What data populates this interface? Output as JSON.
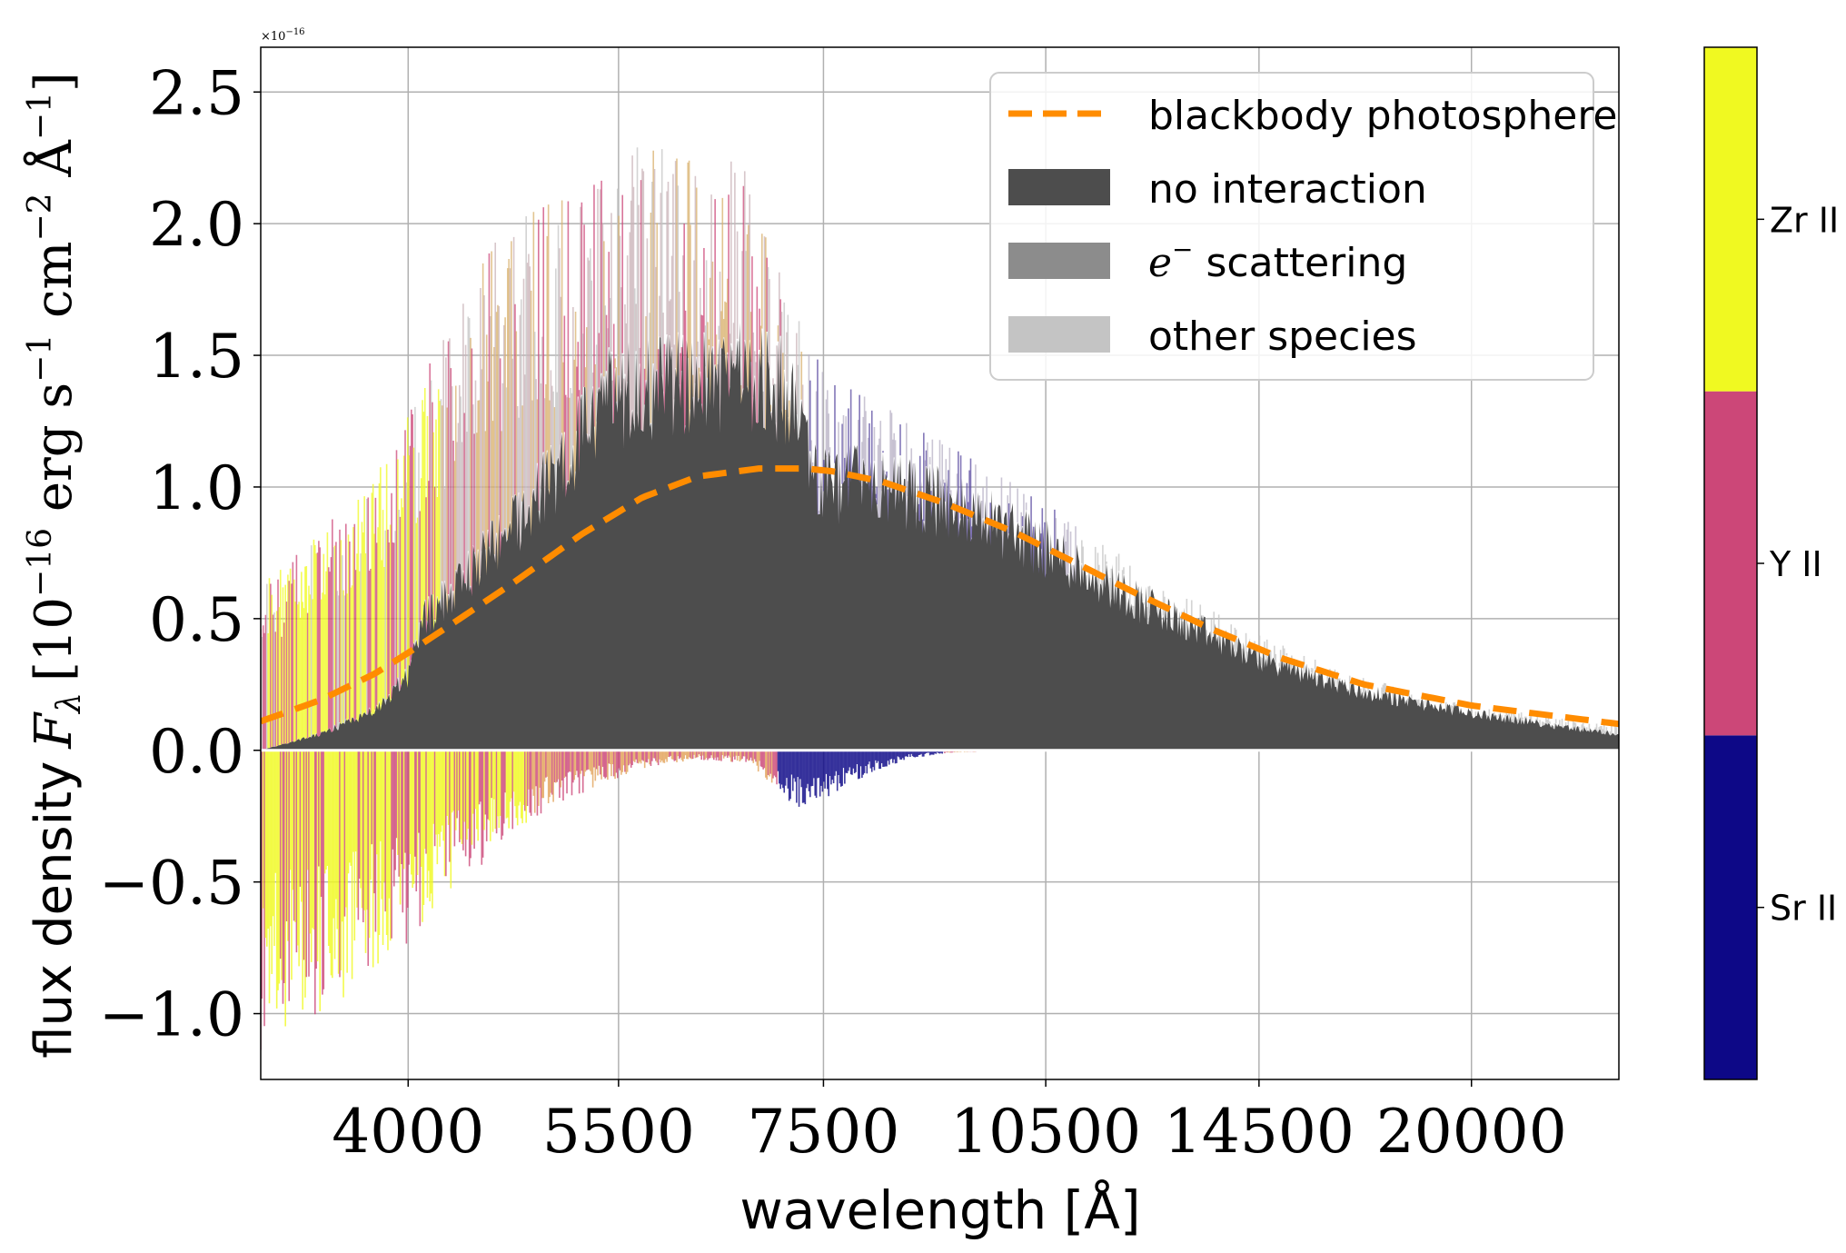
{
  "chart_data": {
    "type": "area",
    "xlabel": "wavelength [Å]",
    "ylabel_prefix": "flux density",
    "ylabel_math": "F",
    "ylabel_sub": "λ",
    "ylabel_units": "[10",
    "ylabel_exp1": "−16",
    "ylabel_unit2": " erg s",
    "ylabel_exp2": "−1",
    "ylabel_unit3": " cm",
    "ylabel_exp3": "−2",
    "ylabel_unit4": " Å",
    "ylabel_exp4": "−1",
    "ylabel_close": "]",
    "offset_text": "×10",
    "offset_exp": "−16",
    "x_scale": "log",
    "xlim": [
      3200,
      25000
    ],
    "ylim": [
      -1.25,
      2.67
    ],
    "xticks": [
      4000,
      5500,
      7500,
      10500,
      14500,
      20000
    ],
    "xtick_labels": [
      "4000",
      "5500",
      "7500",
      "10500",
      "14500",
      "20000"
    ],
    "yticks": [
      -1.0,
      -0.5,
      0.0,
      0.5,
      1.0,
      1.5,
      2.0,
      2.5
    ],
    "ytick_labels": [
      "−1.0",
      "−0.5",
      "0.0",
      "0.5",
      "1.0",
      "1.5",
      "2.0",
      "2.5"
    ],
    "grid": true,
    "legend_position": "top-right",
    "legend": [
      {
        "label": "blackbody photosphere",
        "kind": "dashed-line",
        "color": "#ff8c00"
      },
      {
        "label": "no interaction",
        "kind": "patch",
        "color": "#4d4d4d"
      },
      {
        "label_math": "e",
        "label_sup": "−",
        "label": " scattering",
        "kind": "patch",
        "color": "#8c8c8c"
      },
      {
        "label": "other species",
        "kind": "patch",
        "color": "#c4c4c4"
      }
    ],
    "colorbar": {
      "position": "right",
      "segments": [
        {
          "label": "Sr II",
          "color": "#0d0887"
        },
        {
          "label": "Y II",
          "color": "#cc4778"
        },
        {
          "label": "Zr II",
          "color": "#f0f921"
        }
      ]
    },
    "blackbody": {
      "x": [
        3200,
        3500,
        3800,
        4000,
        4300,
        4700,
        5200,
        5700,
        6200,
        6800,
        7300,
        7600,
        8200,
        9000,
        10000,
        11000,
        12000,
        13500,
        15000,
        17000,
        20000,
        25000
      ],
      "y": [
        0.11,
        0.19,
        0.29,
        0.37,
        0.49,
        0.64,
        0.82,
        0.96,
        1.04,
        1.07,
        1.07,
        1.06,
        1.02,
        0.94,
        0.83,
        0.71,
        0.6,
        0.46,
        0.35,
        0.25,
        0.17,
        0.1
      ]
    },
    "no_interaction_envelope": {
      "x": [
        3200,
        3500,
        3800,
        4000,
        4100,
        4300,
        4600,
        5000,
        5400,
        5800,
        6200,
        6700,
        7100,
        7300,
        7500,
        8000,
        9000,
        10000,
        11000,
        12500,
        14500,
        17000,
        20000,
        25000
      ],
      "y": [
        0.0,
        0.06,
        0.15,
        0.28,
        0.5,
        0.62,
        0.8,
        1.05,
        1.33,
        1.38,
        1.4,
        1.42,
        1.36,
        1.12,
        1.0,
        1.02,
        0.94,
        0.83,
        0.7,
        0.52,
        0.35,
        0.22,
        0.14,
        0.06
      ]
    },
    "emission_total_envelope": {
      "x": [
        3200,
        3500,
        3800,
        4000,
        4300,
        4600,
        5000,
        5400,
        5800,
        6200,
        6700,
        7100,
        7300,
        7600,
        8200,
        9000,
        10000,
        11000,
        12500,
        14500,
        17000,
        20000,
        25000
      ],
      "y": [
        0.55,
        0.72,
        0.92,
        1.12,
        1.5,
        1.72,
        1.86,
        1.98,
        2.02,
        1.98,
        1.94,
        1.6,
        1.36,
        1.22,
        1.15,
        1.02,
        0.9,
        0.75,
        0.55,
        0.38,
        0.24,
        0.15,
        0.08
      ]
    },
    "absorption_envelope": {
      "x": [
        3200,
        3500,
        3800,
        4000,
        4300,
        4600,
        5000,
        5400,
        5800,
        6200,
        6700,
        7000,
        7300,
        7600,
        8000,
        8500,
        9000,
        10000
      ],
      "y": [
        -0.95,
        -0.85,
        -0.7,
        -0.62,
        -0.45,
        -0.3,
        -0.18,
        -0.1,
        -0.05,
        -0.03,
        -0.04,
        -0.14,
        -0.2,
        -0.14,
        -0.08,
        -0.03,
        -0.01,
        0.0
      ]
    }
  }
}
